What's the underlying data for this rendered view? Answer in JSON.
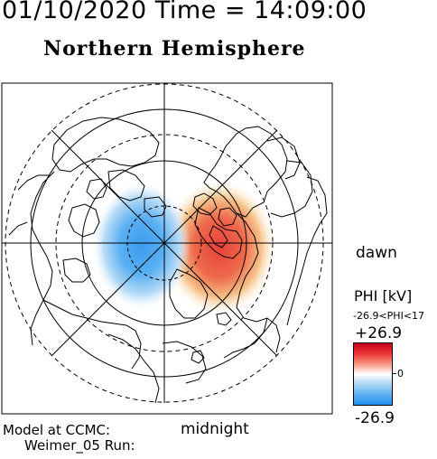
{
  "header": {
    "date_time": "01/10/2020 Time = 14:09:00",
    "hemisphere": "Northern Hemisphere"
  },
  "map": {
    "projection": "polar, north pole centered",
    "local_time_labels": {
      "right": "dawn",
      "bottom": "midnight"
    },
    "grid": "latitude circles (solid and dashed) with meridian lines every 45 degrees",
    "field": "electric potential PHI",
    "features": [
      "coastlines",
      "positive potential cell on dawn side (red)",
      "negative potential cell on dusk side (blue)"
    ]
  },
  "legend": {
    "title": "PHI [kV]",
    "range_text": "-26.9<PHI<17",
    "max": "+26.9",
    "mid": "0",
    "min": "-26.9",
    "colors": {
      "max": "#c8001e",
      "mid": "#ffffff",
      "min": "#1e8ef0"
    }
  },
  "footer": {
    "line1": "Model at CCMC:",
    "line2": "Weimer_05 Run:"
  }
}
